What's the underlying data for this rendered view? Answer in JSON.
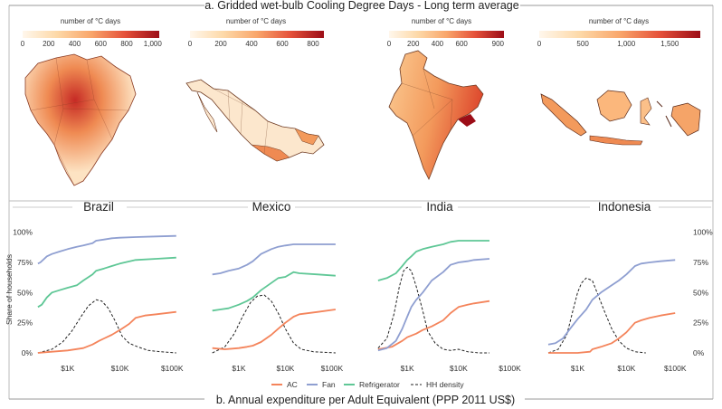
{
  "figure": {
    "panel_a_title": "a. Gridded wet-bulb Cooling Degree Days - Long term average",
    "panel_b_title": "b. Annual expenditure per Adult Equivalent (PPP 2011 US$)",
    "ylabel": "Share of households",
    "legend": [
      "AC",
      "Fan",
      "Refrigerator",
      "HH density"
    ]
  },
  "colors": {
    "ac": "#f4845b",
    "fan": "#8f9fd1",
    "refrigerator": "#5fc796",
    "density": "#222222",
    "map_low": "#fff2e3",
    "map_high": "#9c0d17"
  },
  "maps": [
    {
      "country": "Brazil",
      "colorbar_title": "number of °C days",
      "ticks": [
        "0",
        "200",
        "400",
        "600",
        "800",
        "1,000"
      ],
      "max": 1050,
      "tick_values": [
        0,
        200,
        400,
        600,
        800,
        1000
      ]
    },
    {
      "country": "Mexico",
      "colorbar_title": "number of °C days",
      "ticks": [
        "0",
        "200",
        "400",
        "600",
        "800"
      ],
      "max": 870,
      "tick_values": [
        0,
        200,
        400,
        600,
        800
      ]
    },
    {
      "country": "India",
      "colorbar_title": "number of °C days",
      "ticks": [
        "0",
        "200",
        "400",
        "600",
        "900"
      ],
      "max": 950,
      "tick_values": [
        0,
        200,
        400,
        600,
        900
      ]
    },
    {
      "country": "Indonesia",
      "colorbar_title": "number of °C days",
      "ticks": [
        "0",
        "500",
        "1,000",
        "1,500"
      ],
      "max": 1850,
      "tick_values": [
        0,
        500,
        1000,
        1500
      ]
    }
  ],
  "chart_data": {
    "type": "line",
    "xlabel": "Annual expenditure per Adult Equivalent (PPP 2011 US$)",
    "ylabel": "Share of households",
    "x_scale": "log",
    "x_ticks": [
      "$1K",
      "$10K",
      "$100K"
    ],
    "xlim": [
      250,
      180000
    ],
    "y_ticks_left": [
      "0%",
      "25%",
      "50%",
      "75%",
      "100%"
    ],
    "y_ticks_right": [
      "0%",
      "25%",
      "50%",
      "75%",
      "100%"
    ],
    "ylim": [
      0,
      1.05
    ],
    "panels": [
      {
        "country": "Brazil",
        "series": [
          {
            "name": "Fan",
            "key": "fan",
            "x": [
              270,
              300,
              400,
              500,
              700,
              1000,
              1500,
              2000,
              3000,
              3500,
              5000,
              7000,
              10000,
              20000,
              50000,
              120000
            ],
            "y": [
              0.74,
              0.75,
              0.8,
              0.82,
              0.84,
              0.86,
              0.88,
              0.89,
              0.91,
              0.93,
              0.94,
              0.95,
              0.955,
              0.96,
              0.965,
              0.97
            ]
          },
          {
            "name": "Refrigerator",
            "key": "refrigerator",
            "x": [
              270,
              320,
              400,
              500,
              700,
              1000,
              1500,
              2000,
              3000,
              3500,
              5000,
              7000,
              10000,
              20000,
              50000,
              120000
            ],
            "y": [
              0.38,
              0.4,
              0.46,
              0.5,
              0.52,
              0.54,
              0.56,
              0.6,
              0.65,
              0.68,
              0.7,
              0.72,
              0.74,
              0.77,
              0.78,
              0.79
            ]
          },
          {
            "name": "AC",
            "key": "ac",
            "x": [
              270,
              500,
              1000,
              2000,
              3000,
              4000,
              5000,
              7000,
              10000,
              15000,
              20000,
              30000,
              50000,
              120000
            ],
            "y": [
              0.0,
              0.01,
              0.02,
              0.04,
              0.07,
              0.1,
              0.12,
              0.15,
              0.19,
              0.24,
              0.29,
              0.31,
              0.32,
              0.34
            ]
          },
          {
            "name": "HH density",
            "key": "density",
            "x": [
              270,
              500,
              800,
              1200,
              1800,
              2500,
              3500,
              4500,
              6000,
              8000,
              11000,
              15000,
              22000,
              35000,
              60000,
              120000
            ],
            "y": [
              0.0,
              0.03,
              0.09,
              0.18,
              0.3,
              0.39,
              0.44,
              0.43,
              0.37,
              0.27,
              0.14,
              0.08,
              0.05,
              0.02,
              0.01,
              0.0
            ]
          }
        ]
      },
      {
        "country": "Mexico",
        "series": [
          {
            "name": "Fan",
            "key": "fan",
            "x": [
              270,
              400,
              600,
              1000,
              1500,
              2000,
              3000,
              5000,
              7000,
              10000,
              15000,
              20000,
              50000,
              120000
            ],
            "y": [
              0.65,
              0.66,
              0.68,
              0.7,
              0.73,
              0.76,
              0.82,
              0.86,
              0.88,
              0.89,
              0.9,
              0.9,
              0.9,
              0.9
            ]
          },
          {
            "name": "Refrigerator",
            "key": "refrigerator",
            "x": [
              270,
              400,
              600,
              1000,
              1500,
              2000,
              3000,
              5000,
              7000,
              10000,
              15000,
              20000,
              50000,
              120000
            ],
            "y": [
              0.35,
              0.36,
              0.37,
              0.4,
              0.43,
              0.46,
              0.52,
              0.58,
              0.62,
              0.63,
              0.67,
              0.66,
              0.65,
              0.64
            ]
          },
          {
            "name": "AC",
            "key": "ac",
            "x": [
              270,
              500,
              1000,
              1500,
              2000,
              3000,
              5000,
              7000,
              10000,
              15000,
              20000,
              50000,
              120000
            ],
            "y": [
              0.04,
              0.03,
              0.04,
              0.05,
              0.06,
              0.09,
              0.15,
              0.2,
              0.25,
              0.3,
              0.32,
              0.34,
              0.36
            ]
          },
          {
            "name": "HH density",
            "key": "density",
            "x": [
              270,
              500,
              800,
              1200,
              1800,
              2500,
              3500,
              5000,
              7000,
              10000,
              15000,
              22000,
              40000,
              120000
            ],
            "y": [
              0.0,
              0.05,
              0.16,
              0.3,
              0.42,
              0.47,
              0.48,
              0.43,
              0.33,
              0.2,
              0.08,
              0.03,
              0.01,
              0.0
            ]
          }
        ]
      },
      {
        "country": "India",
        "series": [
          {
            "name": "Fan",
            "key": "fan",
            "x": [
              270,
              400,
              600,
              800,
              1000,
              1200,
              1500,
              2000,
              3000,
              5000,
              7000,
              10000,
              15000,
              20000,
              40000
            ],
            "y": [
              0.02,
              0.04,
              0.1,
              0.2,
              0.3,
              0.38,
              0.44,
              0.5,
              0.6,
              0.67,
              0.73,
              0.75,
              0.76,
              0.77,
              0.78
            ]
          },
          {
            "name": "Refrigerator",
            "key": "refrigerator",
            "x": [
              270,
              400,
              600,
              800,
              1000,
              1200,
              1500,
              2000,
              3000,
              5000,
              7000,
              10000,
              15000,
              20000,
              40000
            ],
            "y": [
              0.6,
              0.62,
              0.66,
              0.72,
              0.77,
              0.8,
              0.84,
              0.86,
              0.88,
              0.9,
              0.92,
              0.93,
              0.93,
              0.93,
              0.93
            ]
          },
          {
            "name": "AC",
            "key": "ac",
            "x": [
              270,
              500,
              800,
              1000,
              1500,
              2000,
              3000,
              5000,
              7000,
              10000,
              15000,
              20000,
              40000
            ],
            "y": [
              0.03,
              0.05,
              0.1,
              0.13,
              0.16,
              0.19,
              0.22,
              0.27,
              0.33,
              0.38,
              0.4,
              0.41,
              0.43
            ]
          },
          {
            "name": "HH density",
            "key": "density",
            "x": [
              270,
              400,
              550,
              700,
              850,
              1000,
              1200,
              1500,
              2000,
              2500,
              3500,
              5000,
              7000,
              10000,
              15000,
              25000,
              40000
            ],
            "y": [
              0.04,
              0.12,
              0.32,
              0.55,
              0.68,
              0.71,
              0.68,
              0.55,
              0.35,
              0.18,
              0.08,
              0.03,
              0.02,
              0.03,
              0.01,
              0.0,
              0.0
            ]
          }
        ]
      },
      {
        "country": "Indonesia",
        "series": [
          {
            "name": "Fan",
            "key": "fan",
            "x": [
              250,
              350,
              500,
              700,
              1000,
              1500,
              2000,
              3000,
              5000,
              7000,
              10000,
              15000,
              20000,
              30000,
              50000,
              100000
            ],
            "y": [
              0.07,
              0.08,
              0.12,
              0.2,
              0.28,
              0.36,
              0.44,
              0.5,
              0.56,
              0.6,
              0.65,
              0.72,
              0.74,
              0.75,
              0.76,
              0.77
            ]
          },
          {
            "name": "AC",
            "key": "ac",
            "x": [
              250,
              1000,
              1800,
              2000,
              3000,
              5000,
              7000,
              10000,
              15000,
              20000,
              30000,
              50000,
              100000
            ],
            "y": [
              0.0,
              0.0,
              0.01,
              0.03,
              0.05,
              0.08,
              0.12,
              0.17,
              0.25,
              0.27,
              0.29,
              0.31,
              0.33
            ]
          },
          {
            "name": "HH density",
            "key": "density",
            "x": [
              250,
              400,
              600,
              800,
              1000,
              1200,
              1500,
              2000,
              2500,
              3500,
              5000,
              7000,
              10000,
              15000,
              25000
            ],
            "y": [
              0.0,
              0.03,
              0.15,
              0.35,
              0.5,
              0.58,
              0.62,
              0.6,
              0.5,
              0.35,
              0.2,
              0.1,
              0.04,
              0.01,
              0.0
            ]
          }
        ]
      }
    ]
  }
}
